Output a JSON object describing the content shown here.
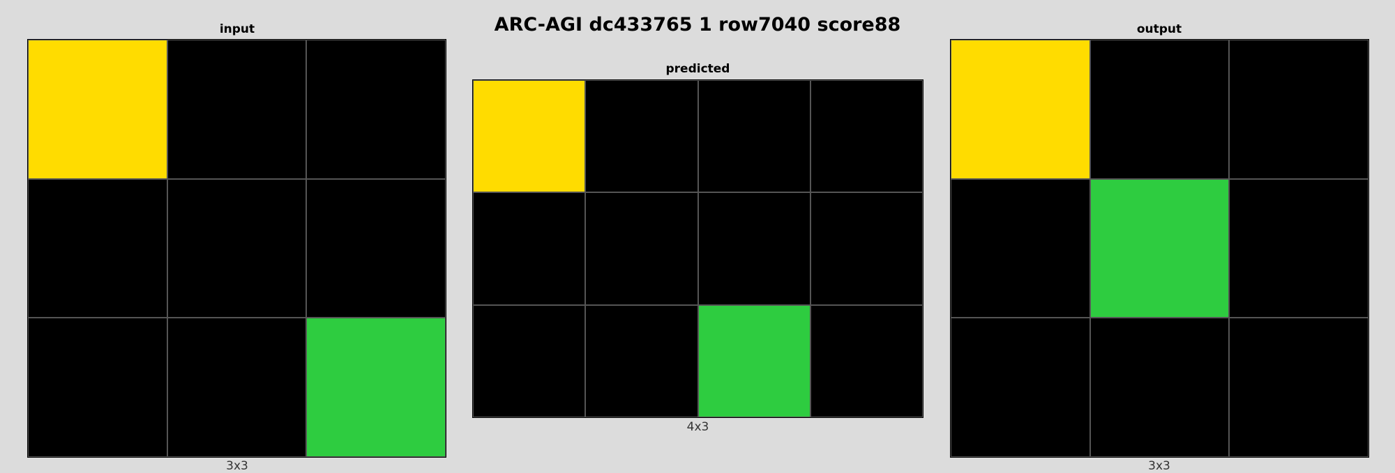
{
  "title": "ARC-AGI dc433765 1 row7040 score88",
  "palette": {
    "0": "#000000",
    "3": "#2ecc40",
    "4": "#ffdc00"
  },
  "panels": {
    "input": {
      "label": "input",
      "dims": "3x3",
      "grid": [
        [
          4,
          0,
          0
        ],
        [
          0,
          0,
          0
        ],
        [
          0,
          0,
          3
        ]
      ]
    },
    "predicted": {
      "label": "predicted",
      "dims": "4x3",
      "grid": [
        [
          4,
          0,
          0,
          0
        ],
        [
          0,
          0,
          0,
          0
        ],
        [
          0,
          0,
          3,
          0
        ]
      ]
    },
    "output": {
      "label": "output",
      "dims": "3x3",
      "grid": [
        [
          4,
          0,
          0
        ],
        [
          0,
          3,
          0
        ],
        [
          0,
          0,
          0
        ]
      ]
    }
  }
}
